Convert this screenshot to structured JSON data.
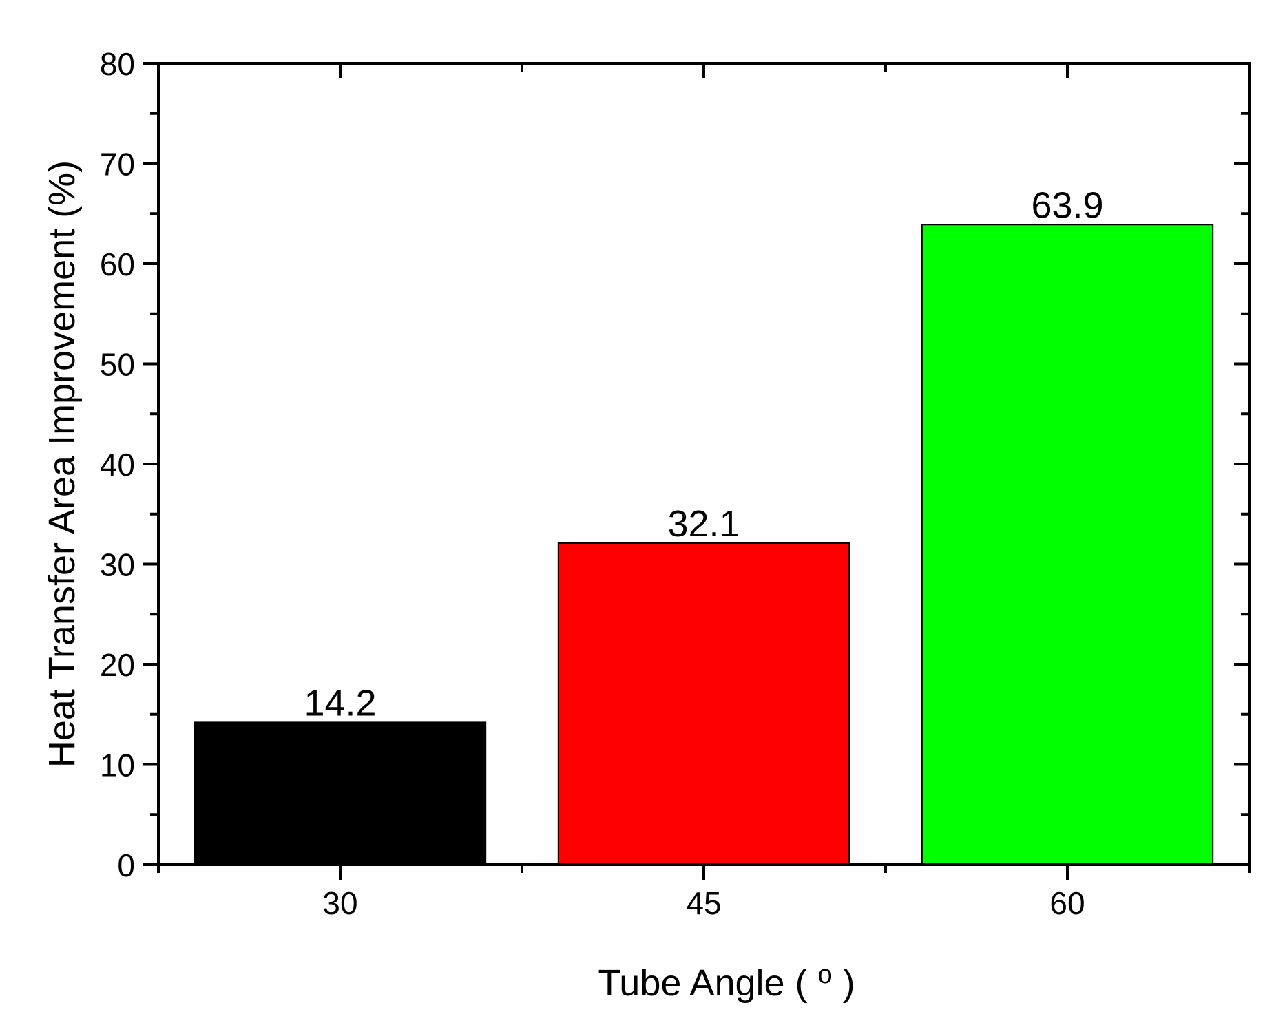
{
  "chart_data": {
    "type": "bar",
    "categories": [
      "30",
      "45",
      "60"
    ],
    "values": [
      14.2,
      32.1,
      63.9
    ],
    "data_labels": [
      "14.2",
      "32.1",
      "63.9"
    ],
    "bar_colors": [
      "#000000",
      "#ff0000",
      "#00ff00"
    ],
    "title": "",
    "xlabel": "Tube Angle ( o )",
    "ylabel": "Heat Transfer Area Improvement (%)",
    "ylim": [
      0,
      80
    ],
    "yticks": [
      "0",
      "10",
      "20",
      "30",
      "40",
      "50",
      "60",
      "70",
      "80"
    ],
    "grid": false,
    "legend": "none"
  }
}
